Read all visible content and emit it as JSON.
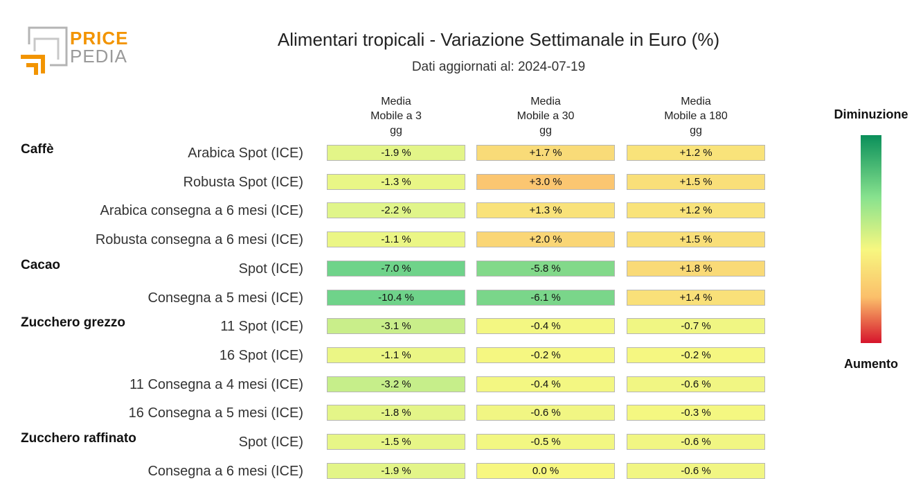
{
  "logo": {
    "brand_line1": "PRICE",
    "brand_line2": "PEDIA"
  },
  "title": "Alimentari tropicali - Variazione Settimanale in Euro (%)",
  "subtitle": "Dati aggiornati al: 2024-07-19",
  "legend": {
    "top_label": "Diminuzione",
    "bottom_label": "Aumento"
  },
  "chart_data": {
    "type": "table",
    "columns": [
      [
        "Media",
        "Mobile a 3",
        "gg"
      ],
      [
        "Media",
        "Mobile a 30",
        "gg"
      ],
      [
        "Media",
        "Mobile a 180",
        "gg"
      ]
    ],
    "groups": [
      {
        "name": "Caffè",
        "rows": [
          {
            "label": "Arabica Spot (ICE)",
            "values": [
              "-1.9 %",
              "+1.7 %",
              "+1.2 %"
            ]
          },
          {
            "label": "Robusta Spot (ICE)",
            "values": [
              "-1.3 %",
              "+3.0 %",
              "+1.5 %"
            ]
          },
          {
            "label": "Arabica consegna a 6 mesi (ICE)",
            "values": [
              "-2.2 %",
              "+1.3 %",
              "+1.2 %"
            ]
          },
          {
            "label": "Robusta consegna a 6 mesi (ICE)",
            "values": [
              "-1.1 %",
              "+2.0 %",
              "+1.5 %"
            ]
          }
        ]
      },
      {
        "name": "Cacao",
        "rows": [
          {
            "label": "Spot (ICE)",
            "values": [
              "-7.0 %",
              "-5.8 %",
              "+1.8 %"
            ]
          },
          {
            "label": "Consegna a 5 mesi (ICE)",
            "values": [
              "-10.4 %",
              "-6.1 %",
              "+1.4 %"
            ]
          }
        ]
      },
      {
        "name": "Zucchero grezzo",
        "rows": [
          {
            "label": "11 Spot (ICE)",
            "values": [
              "-3.1 %",
              "-0.4 %",
              "-0.7 %"
            ]
          },
          {
            "label": "16 Spot (ICE)",
            "values": [
              "-1.1 %",
              "-0.2 %",
              "-0.2 %"
            ]
          },
          {
            "label": "11 Consegna a 4 mesi (ICE)",
            "values": [
              "-3.2 %",
              "-0.4 %",
              "-0.6 %"
            ]
          },
          {
            "label": "16 Consegna a 5 mesi (ICE)",
            "values": [
              "-1.8 %",
              "-0.6 %",
              "-0.3 %"
            ]
          }
        ]
      },
      {
        "name": "Zucchero raffinato",
        "rows": [
          {
            "label": "Spot (ICE)",
            "values": [
              "-1.5 %",
              "-0.5 %",
              "-0.6 %"
            ]
          },
          {
            "label": "Consegna a 6 mesi (ICE)",
            "values": [
              "-1.9 %",
              "0.0 %",
              "-0.6 %"
            ]
          }
        ]
      }
    ],
    "color_scale": {
      "low": "#0a8f5a",
      "mid": "#f7f780",
      "high": "#d6142c"
    }
  }
}
